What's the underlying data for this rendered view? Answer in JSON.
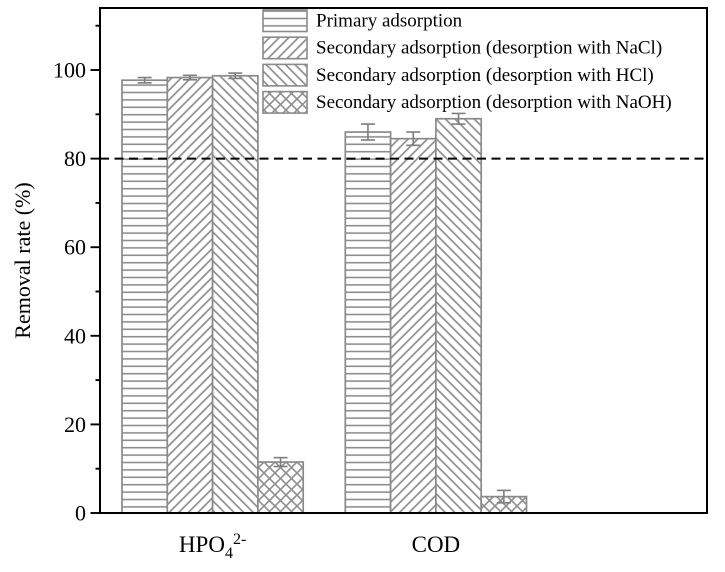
{
  "chart_data": {
    "type": "bar",
    "title": "",
    "xlabel": "",
    "ylabel": "Removal rate (%)",
    "ylim": [
      0,
      114
    ],
    "y_major_ticks": [
      0,
      20,
      40,
      60,
      80,
      100
    ],
    "y_minor_ticks": [
      10,
      30,
      50,
      70,
      90,
      110
    ],
    "grid": false,
    "legend_position": "top-right-inside",
    "reference_line": {
      "y": 80,
      "style": "dashed"
    },
    "categories": [
      {
        "base": "HPO",
        "sub": "4",
        "sup": "2-"
      },
      {
        "base": "COD",
        "sub": "",
        "sup": ""
      }
    ],
    "series": [
      {
        "name": "Primary adsorption",
        "hatch": "horizontal",
        "values": [
          97.7,
          86.0
        ],
        "errors": [
          0.6,
          1.8
        ]
      },
      {
        "name": "Secondary adsorption (desorption with NaCl)",
        "hatch": "diagonal-forward",
        "values": [
          98.3,
          84.5
        ],
        "errors": [
          0.5,
          1.5
        ]
      },
      {
        "name": "Secondary adsorption (desorption with HCl)",
        "hatch": "diagonal-backward",
        "values": [
          98.7,
          89.0
        ],
        "errors": [
          0.6,
          1.2
        ]
      },
      {
        "name": "Secondary adsorption (desorption with NaOH)",
        "hatch": "crosshatch",
        "values": [
          11.5,
          3.7
        ],
        "errors": [
          1.0,
          1.4
        ]
      }
    ],
    "colors": {
      "background": "#ffffff",
      "bar_fill": "#ffffff",
      "bar_edge": "#8a8a8a",
      "hatch": "#8e8e8e",
      "error_bar": "#7d7d7d",
      "axis": "#000000",
      "text": "#000000",
      "reference_line": "#000000"
    }
  }
}
